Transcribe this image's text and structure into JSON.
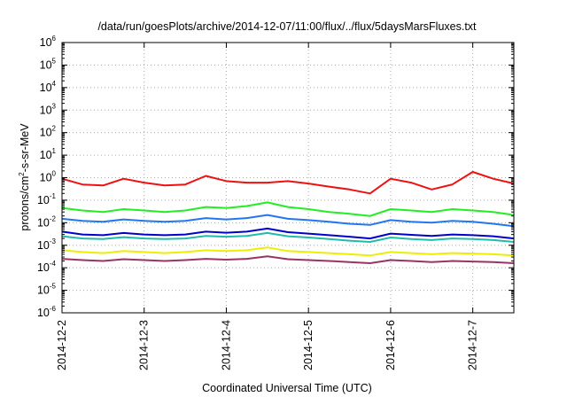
{
  "chart_data": {
    "type": "line",
    "title": "/data/run/goesPlots/archive/2014-12-07/11:00/flux/../flux/5daysMarsFluxes.txt",
    "xlabel": "Coordinated Universal Time (UTC)",
    "ylabel": {
      "base": "protons/cm",
      "sup": "2",
      "rest": "-s-sr-MeV"
    },
    "yscale": "log",
    "ylim": [
      1e-06,
      1000000.0
    ],
    "xlim": [
      "2014-12-02",
      "2014-12-07T12:00"
    ],
    "x_ticks": [
      "2014-12-2",
      "2014-12-3",
      "2014-12-4",
      "2014-12-5",
      "2014-12-6",
      "2014-12-7"
    ],
    "y_ticks": [
      {
        "value": 1e-06,
        "mant": "10",
        "exp": "-6"
      },
      {
        "value": 1e-05,
        "mant": "10",
        "exp": "-5"
      },
      {
        "value": 0.0001,
        "mant": "10",
        "exp": "-4"
      },
      {
        "value": 0.001,
        "mant": "10",
        "exp": "-3"
      },
      {
        "value": 0.01,
        "mant": "10",
        "exp": "-2"
      },
      {
        "value": 0.1,
        "mant": "10",
        "exp": "-1"
      },
      {
        "value": 1,
        "mant": "10",
        "exp": "0"
      },
      {
        "value": 10.0,
        "mant": "10",
        "exp": "1"
      },
      {
        "value": 100.0,
        "mant": "10",
        "exp": "2"
      },
      {
        "value": 1000.0,
        "mant": "10",
        "exp": "3"
      },
      {
        "value": 10000.0,
        "mant": "10",
        "exp": "4"
      },
      {
        "value": 100000.0,
        "mant": "10",
        "exp": "5"
      },
      {
        "value": 1000000.0,
        "mant": "10",
        "exp": "6"
      }
    ],
    "grid": true,
    "x": [
      "2014-12-02T00:00",
      "2014-12-02T06:00",
      "2014-12-02T12:00",
      "2014-12-02T18:00",
      "2014-12-03T00:00",
      "2014-12-03T06:00",
      "2014-12-03T12:00",
      "2014-12-03T18:00",
      "2014-12-04T00:00",
      "2014-12-04T06:00",
      "2014-12-04T12:00",
      "2014-12-04T18:00",
      "2014-12-05T00:00",
      "2014-12-05T06:00",
      "2014-12-05T12:00",
      "2014-12-05T18:00",
      "2014-12-06T00:00",
      "2014-12-06T06:00",
      "2014-12-06T12:00",
      "2014-12-06T18:00",
      "2014-12-07T00:00",
      "2014-12-07T06:00",
      "2014-12-07T12:00"
    ],
    "series": [
      {
        "color": "#ee1111",
        "values": [
          0.9,
          0.5,
          0.45,
          0.9,
          0.6,
          0.45,
          0.5,
          1.2,
          0.7,
          0.6,
          0.6,
          0.7,
          0.55,
          0.4,
          0.3,
          0.2,
          0.9,
          0.6,
          0.3,
          0.5,
          1.8,
          0.9,
          0.55
        ]
      },
      {
        "color": "#22ee22",
        "values": [
          0.045,
          0.035,
          0.03,
          0.04,
          0.035,
          0.03,
          0.035,
          0.05,
          0.045,
          0.055,
          0.08,
          0.05,
          0.04,
          0.03,
          0.025,
          0.02,
          0.04,
          0.035,
          0.03,
          0.04,
          0.035,
          0.03,
          0.022
        ]
      },
      {
        "color": "#2277ee",
        "values": [
          0.015,
          0.012,
          0.011,
          0.014,
          0.012,
          0.011,
          0.012,
          0.016,
          0.014,
          0.016,
          0.022,
          0.015,
          0.013,
          0.011,
          0.009,
          0.008,
          0.013,
          0.011,
          0.01,
          0.012,
          0.011,
          0.009,
          0.007
        ]
      },
      {
        "color": "#0000cc",
        "values": [
          0.004,
          0.003,
          0.0028,
          0.0035,
          0.003,
          0.0028,
          0.003,
          0.004,
          0.0036,
          0.004,
          0.0055,
          0.0038,
          0.0033,
          0.0028,
          0.0024,
          0.002,
          0.0033,
          0.0029,
          0.0026,
          0.003,
          0.0028,
          0.0025,
          0.002
        ]
      },
      {
        "color": "#22bbaa",
        "values": [
          0.0025,
          0.002,
          0.0019,
          0.0023,
          0.002,
          0.0019,
          0.002,
          0.0026,
          0.0024,
          0.0026,
          0.0035,
          0.0025,
          0.0022,
          0.0019,
          0.0016,
          0.0014,
          0.0022,
          0.0019,
          0.0017,
          0.002,
          0.0019,
          0.0017,
          0.0014
        ]
      },
      {
        "color": "#eeee00",
        "values": [
          0.0006,
          0.0005,
          0.00045,
          0.00055,
          0.0005,
          0.00045,
          0.0005,
          0.0006,
          0.00055,
          0.0006,
          0.0008,
          0.00055,
          0.0005,
          0.00045,
          0.0004,
          0.00035,
          0.0005,
          0.00045,
          0.0004,
          0.00045,
          0.00043,
          0.0004,
          0.00035
        ]
      },
      {
        "color": "#993366",
        "values": [
          0.00025,
          0.00022,
          0.0002,
          0.00024,
          0.00022,
          0.0002,
          0.00022,
          0.00025,
          0.00023,
          0.00025,
          0.00032,
          0.00024,
          0.00022,
          0.0002,
          0.00018,
          0.00016,
          0.00022,
          0.0002,
          0.00018,
          0.0002,
          0.00019,
          0.00018,
          0.00016
        ]
      }
    ]
  }
}
